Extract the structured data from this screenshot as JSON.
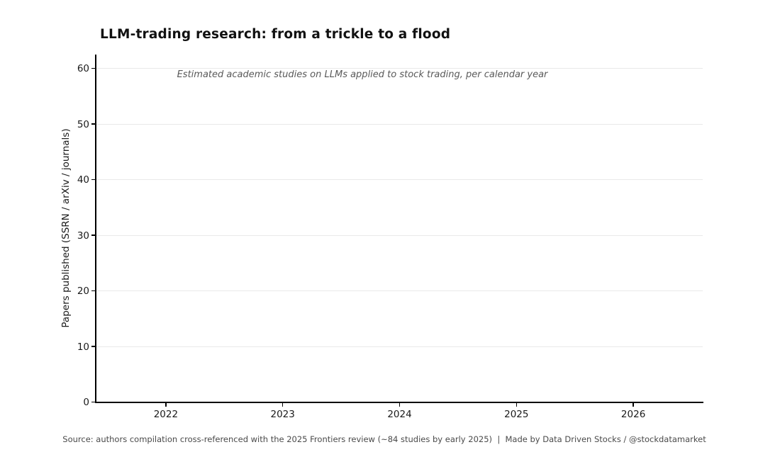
{
  "header": {
    "title": "LLM-trading research: from a trickle to a flood",
    "subtitle": "Estimated academic studies on LLMs applied to stock trading, per calendar year"
  },
  "footer": {
    "source_line": "Source: authors compilation cross-referenced with the 2025 Frontiers review (~84 studies by early 2025)  |  Made by Data Driven Stocks / @stockdatamarket"
  },
  "chart_data": {
    "type": "bar",
    "title": "LLM-trading research: from a trickle to a flood",
    "subtitle": "Estimated academic studies on LLMs applied to stock trading, per calendar year",
    "xlabel": "",
    "ylabel": "Papers published (SSRN / arXiv / journals)",
    "x_tick_values": [
      2022,
      2023,
      2024,
      2025,
      2026
    ],
    "x_tick_labels": [
      "2022",
      "2023",
      "2024",
      "2025",
      "2026"
    ],
    "y_tick_values": [
      0,
      10,
      20,
      30,
      40,
      50,
      60
    ],
    "y_tick_labels": [
      "0",
      "10",
      "20",
      "30",
      "40",
      "50",
      "60"
    ],
    "xlim": [
      2021.4,
      2026.6
    ],
    "ylim": [
      0,
      62.5
    ],
    "grid": "horizontal-gridlines-on",
    "legend": "none",
    "series": [],
    "plot_area_empty": true
  },
  "colors": {
    "background": "#ffffff",
    "title": "#111111",
    "subtitle": "#595959",
    "footer": "#4a4a4a",
    "axis": "#000000",
    "tick_label": "#1a1a1a",
    "gridline": "#e9e9e9"
  }
}
